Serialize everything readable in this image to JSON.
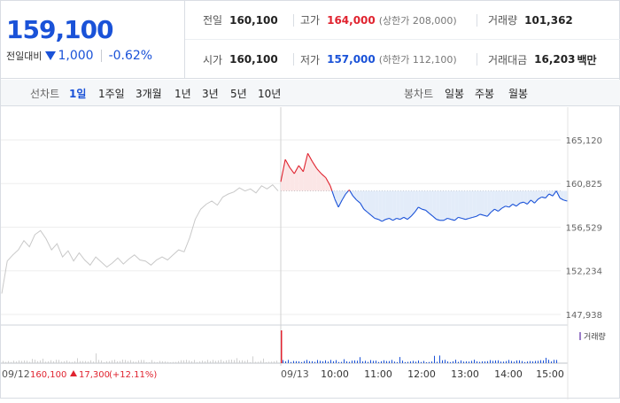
{
  "quote": {
    "price": "159,100",
    "change_label": "전일대비",
    "change": "1,000",
    "change_pct": "-0.62%"
  },
  "stats": {
    "prev_close": {
      "label": "전일",
      "value": "160,100"
    },
    "high": {
      "label": "고가",
      "value": "164,000",
      "note": "(상한가 208,000)"
    },
    "volume": {
      "label": "거래량",
      "value": "101,362"
    },
    "open": {
      "label": "시가",
      "value": "160,100"
    },
    "low": {
      "label": "저가",
      "value": "157,000",
      "note": "(하한가 112,100)"
    },
    "amount": {
      "label": "거래대금",
      "value": "16,203",
      "unit": "백만"
    }
  },
  "toolbar": {
    "line_label": "선차트",
    "line_periods": [
      "1일",
      "1주일",
      "3개월",
      "1년",
      "3년",
      "5년",
      "10년"
    ],
    "line_active": "1일",
    "candle_label": "봉차트",
    "candle_periods": [
      "일봉",
      "주봉",
      "월봉"
    ]
  },
  "chart_data": {
    "type": "line",
    "y_ticks": [
      "165,120",
      "160,825",
      "156,529",
      "152,234",
      "147,938"
    ],
    "ylim": [
      147938,
      165120
    ],
    "reference_price": 160100,
    "x_ticks": [
      "09/12",
      "09/13",
      "10:00",
      "11:00",
      "12:00",
      "13:00",
      "14:00",
      "15:00"
    ],
    "prev_day_summary": {
      "close": "160,100",
      "change": "17,300",
      "change_pct": "(+12.11%)"
    },
    "volume_legend": "거래량",
    "colors": {
      "up": "#e0232f",
      "down": "#1a52d8",
      "prev": "#c8c8c8",
      "up_fill": "#fbe6e6",
      "down_fill": "#e3ecf9"
    },
    "series": [
      {
        "period": "09/12",
        "points": [
          [
            0,
            150000
          ],
          [
            0.02,
            153200
          ],
          [
            0.04,
            153800
          ],
          [
            0.06,
            154300
          ],
          [
            0.08,
            155200
          ],
          [
            0.1,
            154600
          ],
          [
            0.12,
            155800
          ],
          [
            0.14,
            156200
          ],
          [
            0.16,
            155400
          ],
          [
            0.18,
            154300
          ],
          [
            0.2,
            154900
          ],
          [
            0.22,
            153600
          ],
          [
            0.24,
            154200
          ],
          [
            0.26,
            153200
          ],
          [
            0.28,
            154000
          ],
          [
            0.3,
            153300
          ],
          [
            0.32,
            152800
          ],
          [
            0.34,
            153600
          ],
          [
            0.36,
            153100
          ],
          [
            0.38,
            152600
          ],
          [
            0.4,
            153000
          ],
          [
            0.42,
            153500
          ],
          [
            0.44,
            152900
          ],
          [
            0.46,
            153400
          ],
          [
            0.48,
            153800
          ],
          [
            0.5,
            153300
          ],
          [
            0.52,
            153200
          ],
          [
            0.54,
            152800
          ],
          [
            0.56,
            153300
          ],
          [
            0.58,
            153600
          ],
          [
            0.6,
            153300
          ],
          [
            0.62,
            153800
          ],
          [
            0.64,
            154300
          ],
          [
            0.66,
            154100
          ],
          [
            0.68,
            155500
          ],
          [
            0.7,
            157300
          ],
          [
            0.72,
            158300
          ],
          [
            0.74,
            158800
          ],
          [
            0.76,
            159100
          ],
          [
            0.78,
            158700
          ],
          [
            0.8,
            159500
          ],
          [
            0.82,
            159800
          ],
          [
            0.84,
            160000
          ],
          [
            0.86,
            160400
          ],
          [
            0.88,
            160100
          ],
          [
            0.9,
            160300
          ],
          [
            0.92,
            159900
          ],
          [
            0.94,
            160600
          ],
          [
            0.96,
            160300
          ],
          [
            0.98,
            160700
          ],
          [
            1,
            160100
          ]
        ]
      },
      {
        "period": "09/13",
        "points": [
          [
            "09:00",
            161000
          ],
          [
            "09:05",
            163200
          ],
          [
            "09:10",
            162400
          ],
          [
            "09:15",
            161800
          ],
          [
            "09:20",
            162600
          ],
          [
            "09:25",
            162000
          ],
          [
            "09:30",
            163800
          ],
          [
            "09:35",
            163000
          ],
          [
            "09:40",
            162300
          ],
          [
            "09:45",
            161800
          ],
          [
            "09:50",
            161400
          ],
          [
            "09:55",
            160600
          ],
          [
            "10:00",
            159300
          ],
          [
            "10:05",
            158500
          ],
          [
            "10:10",
            159200
          ],
          [
            "10:15",
            159800
          ],
          [
            "10:20",
            160200
          ],
          [
            "10:25",
            159600
          ],
          [
            "10:30",
            159200
          ],
          [
            "10:35",
            158900
          ],
          [
            "10:40",
            158300
          ],
          [
            "10:45",
            158000
          ],
          [
            "10:50",
            157700
          ],
          [
            "10:55",
            157400
          ],
          [
            "11:00",
            157300
          ],
          [
            "11:05",
            157100
          ],
          [
            "11:10",
            157300
          ],
          [
            "11:15",
            157400
          ],
          [
            "11:20",
            157200
          ],
          [
            "11:25",
            157400
          ],
          [
            "11:30",
            157300
          ],
          [
            "11:35",
            157500
          ],
          [
            "11:40",
            157300
          ],
          [
            "11:45",
            157600
          ],
          [
            "11:50",
            158000
          ],
          [
            "11:55",
            158500
          ],
          [
            "12:00",
            158300
          ],
          [
            "12:05",
            158200
          ],
          [
            "12:10",
            157900
          ],
          [
            "12:15",
            157600
          ],
          [
            "12:20",
            157300
          ],
          [
            "12:25",
            157200
          ],
          [
            "12:30",
            157200
          ],
          [
            "12:35",
            157400
          ],
          [
            "12:40",
            157300
          ],
          [
            "12:45",
            157200
          ],
          [
            "12:50",
            157500
          ],
          [
            "12:55",
            157400
          ],
          [
            "13:00",
            157300
          ],
          [
            "13:05",
            157400
          ],
          [
            "13:10",
            157500
          ],
          [
            "13:15",
            157600
          ],
          [
            "13:20",
            157800
          ],
          [
            "13:25",
            157700
          ],
          [
            "13:30",
            157600
          ],
          [
            "13:35",
            158000
          ],
          [
            "13:40",
            158300
          ],
          [
            "13:45",
            158100
          ],
          [
            "13:50",
            158400
          ],
          [
            "13:55",
            158600
          ],
          [
            "14:00",
            158500
          ],
          [
            "14:05",
            158800
          ],
          [
            "14:10",
            158600
          ],
          [
            "14:15",
            158900
          ],
          [
            "14:20",
            159000
          ],
          [
            "14:25",
            158800
          ],
          [
            "14:30",
            159200
          ],
          [
            "14:35",
            158900
          ],
          [
            "14:40",
            159300
          ],
          [
            "14:45",
            159500
          ],
          [
            "14:50",
            159400
          ],
          [
            "14:55",
            159800
          ],
          [
            "15:00",
            159600
          ],
          [
            "15:05",
            160100
          ],
          [
            "15:10",
            159400
          ],
          [
            "15:15",
            159200
          ],
          [
            "15:20",
            159100
          ]
        ]
      }
    ]
  }
}
